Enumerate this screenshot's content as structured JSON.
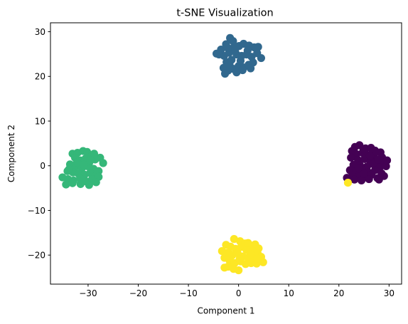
{
  "chart_data": {
    "type": "scatter",
    "title": "t-SNE Visualization",
    "xlabel": "Component 1",
    "ylabel": "Component 2",
    "xlim": [
      -37.5,
      32.5
    ],
    "ylim": [
      -26.5,
      32
    ],
    "xticks": [
      -30,
      -20,
      -10,
      0,
      10,
      20,
      30
    ],
    "yticks": [
      -20,
      -10,
      0,
      10,
      20,
      30
    ],
    "grid": false,
    "colormap": "viridis",
    "series": [
      {
        "color": "#440154",
        "points": [
          [
            23.2,
            4.2
          ],
          [
            24.1,
            4.6
          ],
          [
            25.3,
            3.9
          ],
          [
            26.4,
            4.0
          ],
          [
            27.2,
            3.4
          ],
          [
            28.3,
            3.0
          ],
          [
            22.6,
            3.3
          ],
          [
            23.5,
            2.6
          ],
          [
            24.7,
            2.9
          ],
          [
            25.9,
            2.4
          ],
          [
            27.0,
            2.1
          ],
          [
            28.6,
            1.9
          ],
          [
            22.4,
            1.8
          ],
          [
            23.8,
            1.3
          ],
          [
            25.1,
            1.5
          ],
          [
            26.3,
            1.0
          ],
          [
            27.6,
            0.9
          ],
          [
            28.9,
            0.6
          ],
          [
            22.9,
            0.2
          ],
          [
            24.2,
            0.1
          ],
          [
            25.6,
            -0.2
          ],
          [
            26.8,
            0.4
          ],
          [
            28.1,
            -0.4
          ],
          [
            29.4,
            -0.1
          ],
          [
            22.2,
            -1.0
          ],
          [
            23.4,
            -1.2
          ],
          [
            24.6,
            -0.9
          ],
          [
            25.9,
            -1.5
          ],
          [
            27.2,
            -1.0
          ],
          [
            28.5,
            -1.7
          ],
          [
            22.7,
            -2.2
          ],
          [
            24.0,
            -2.4
          ],
          [
            25.3,
            -2.6
          ],
          [
            26.5,
            -2.0
          ],
          [
            27.7,
            -2.8
          ],
          [
            29.0,
            -2.3
          ],
          [
            23.1,
            -3.1
          ],
          [
            24.5,
            -3.3
          ],
          [
            26.0,
            -3.0
          ],
          [
            21.6,
            -2.7
          ],
          [
            24.9,
            3.7
          ],
          [
            26.9,
            3.1
          ],
          [
            29.6,
            1.2
          ],
          [
            23.9,
            -0.5
          ],
          [
            26.2,
            2.2
          ],
          [
            27.8,
            1.4
          ],
          [
            25.0,
            -1.8
          ],
          [
            28.0,
            -3.1
          ]
        ]
      },
      {
        "color": "#31688e",
        "points": [
          [
            -4.4,
            25.1
          ],
          [
            -3.5,
            26.0
          ],
          [
            -2.5,
            27.2
          ],
          [
            -1.7,
            28.6
          ],
          [
            -1.1,
            27.9
          ],
          [
            -2.9,
            24.6
          ],
          [
            -1.9,
            25.3
          ],
          [
            -0.9,
            26.6
          ],
          [
            0.1,
            26.8
          ],
          [
            1.0,
            27.3
          ],
          [
            2.1,
            26.9
          ],
          [
            3.1,
            26.5
          ],
          [
            3.7,
            25.2
          ],
          [
            4.5,
            24.1
          ],
          [
            2.6,
            24.4
          ],
          [
            1.6,
            24.9
          ],
          [
            0.6,
            24.6
          ],
          [
            -0.4,
            24.9
          ],
          [
            -1.4,
            23.7
          ],
          [
            -2.4,
            23.2
          ],
          [
            -3.0,
            21.9
          ],
          [
            -2.1,
            21.3
          ],
          [
            -1.1,
            21.7
          ],
          [
            0.0,
            22.3
          ],
          [
            1.0,
            22.0
          ],
          [
            2.0,
            22.6
          ],
          [
            2.9,
            23.1
          ],
          [
            -2.7,
            20.6
          ],
          [
            -0.4,
            20.9
          ],
          [
            0.8,
            21.4
          ],
          [
            -3.9,
            24.9
          ],
          [
            -0.7,
            25.8
          ],
          [
            1.8,
            25.8
          ],
          [
            3.9,
            26.6
          ],
          [
            -1.8,
            22.6
          ],
          [
            0.4,
            23.5
          ],
          [
            2.4,
            21.8
          ],
          [
            -2.2,
            26.4
          ]
        ]
      },
      {
        "color": "#35b779",
        "points": [
          [
            -33.1,
            2.7
          ],
          [
            -32.1,
            2.9
          ],
          [
            -31.0,
            3.3
          ],
          [
            -30.2,
            3.1
          ],
          [
            -29.2,
            2.3
          ],
          [
            -27.6,
            1.8
          ],
          [
            -27.0,
            0.6
          ],
          [
            -28.6,
            1.4
          ],
          [
            -32.6,
            1.8
          ],
          [
            -31.6,
            1.2
          ],
          [
            -30.5,
            1.6
          ],
          [
            -29.8,
            0.6
          ],
          [
            -33.6,
            0.3
          ],
          [
            -32.4,
            -0.2
          ],
          [
            -31.2,
            -0.5
          ],
          [
            -30.1,
            -0.1
          ],
          [
            -28.9,
            -0.7
          ],
          [
            -27.9,
            -1.2
          ],
          [
            -34.1,
            -1.2
          ],
          [
            -33.0,
            -1.5
          ],
          [
            -31.9,
            -1.8
          ],
          [
            -30.7,
            -2.0
          ],
          [
            -29.6,
            -1.6
          ],
          [
            -28.4,
            -2.2
          ],
          [
            -35.1,
            -2.6
          ],
          [
            -34.0,
            -3.0
          ],
          [
            -32.9,
            -3.3
          ],
          [
            -31.6,
            -2.8
          ],
          [
            -30.4,
            -3.5
          ],
          [
            -29.2,
            -3.0
          ],
          [
            -27.9,
            -2.5
          ],
          [
            -34.4,
            -4.2
          ],
          [
            -33.1,
            -3.9
          ],
          [
            -31.5,
            -4.1
          ],
          [
            -29.8,
            -4.3
          ],
          [
            -28.4,
            -3.7
          ],
          [
            -32.2,
            0.8
          ],
          [
            -30.9,
            0.2
          ],
          [
            -28.8,
            2.7
          ],
          [
            -33.8,
            -0.8
          ],
          [
            -29.5,
            1.2
          ],
          [
            -31.0,
            -3.4
          ]
        ]
      },
      {
        "color": "#fde725",
        "points": [
          [
            -0.9,
            -16.4
          ],
          [
            0.3,
            -16.9
          ],
          [
            1.3,
            -17.4
          ],
          [
            2.3,
            -17.8
          ],
          [
            3.3,
            -17.6
          ],
          [
            4.0,
            -18.5
          ],
          [
            -2.5,
            -17.7
          ],
          [
            -1.6,
            -18.1
          ],
          [
            -0.6,
            -18.6
          ],
          [
            0.5,
            -18.2
          ],
          [
            1.6,
            -18.9
          ],
          [
            2.8,
            -19.1
          ],
          [
            3.8,
            -19.6
          ],
          [
            4.5,
            -20.4
          ],
          [
            -3.3,
            -19.1
          ],
          [
            -2.3,
            -19.5
          ],
          [
            -1.3,
            -20.1
          ],
          [
            -0.2,
            -19.6
          ],
          [
            0.8,
            -20.3
          ],
          [
            1.9,
            -20.6
          ],
          [
            3.0,
            -20.9
          ],
          [
            4.2,
            -21.2
          ],
          [
            -2.8,
            -20.6
          ],
          [
            -1.8,
            -21.2
          ],
          [
            -0.8,
            -21.8
          ],
          [
            0.4,
            -21.4
          ],
          [
            1.4,
            -22.0
          ],
          [
            2.5,
            -21.8
          ],
          [
            3.6,
            -21.9
          ],
          [
            4.9,
            -21.6
          ],
          [
            -2.1,
            -22.6
          ],
          [
            -1.0,
            -23.1
          ],
          [
            0.0,
            -23.4
          ],
          [
            -2.8,
            -22.8
          ],
          [
            1.9,
            -17.3
          ],
          [
            -1.9,
            -19.6
          ],
          [
            2.4,
            -19.8
          ],
          [
            0.2,
            -20.9
          ],
          [
            3.8,
            -20.8
          ],
          [
            21.8,
            -3.8
          ]
        ]
      }
    ]
  }
}
